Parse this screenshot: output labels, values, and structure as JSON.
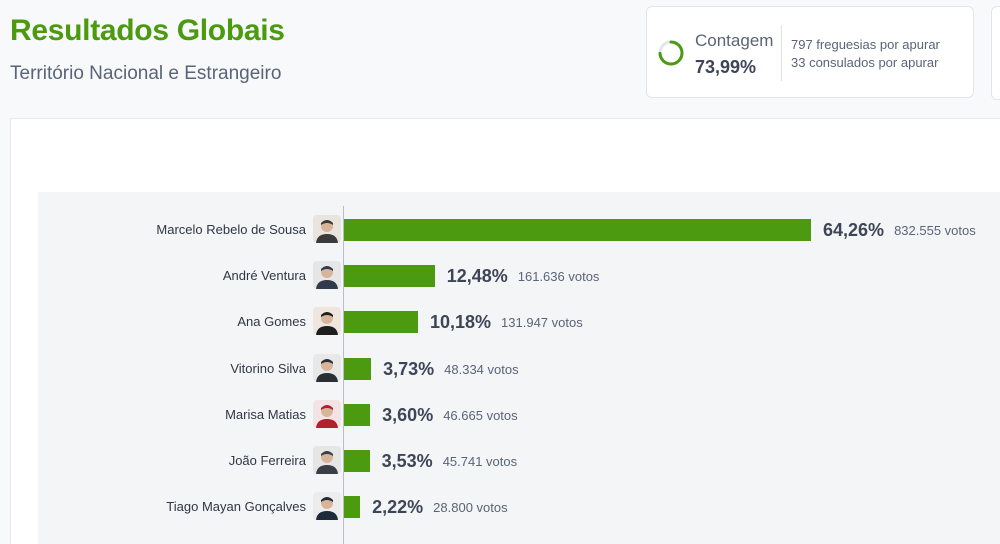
{
  "header": {
    "title": "Resultados Globais",
    "subtitle": "Território Nacional e Estrangeiro"
  },
  "count": {
    "label": "Contagem",
    "value": "73,99%",
    "progress": 0.7399,
    "freguesias": "797 freguesias por apurar",
    "consulados": "33 consulados por apurar"
  },
  "colors": {
    "accent": "#4c9a0f",
    "text": "#3d4556",
    "muted": "#5a6478"
  },
  "chart_data": {
    "type": "bar",
    "orientation": "horizontal",
    "categories": [
      "Marcelo Rebelo de Sousa",
      "André Ventura",
      "Ana Gomes",
      "Vitorino Silva",
      "Marisa Matias",
      "João Ferreira",
      "Tiago Mayan Gonçalves"
    ],
    "values": [
      64.26,
      12.48,
      10.18,
      3.73,
      3.6,
      3.53,
      2.22
    ],
    "pct_labels": [
      "64,26%",
      "12,48%",
      "10,18%",
      "3,73%",
      "3,60%",
      "3,53%",
      "2,22%"
    ],
    "vote_labels": [
      "832.555 votos",
      "161.636 votos",
      "131.947 votos",
      "48.334 votos",
      "46.665 votos",
      "45.741 votos",
      "28.800 votos"
    ],
    "avatars": [
      "portrait-photo-icon",
      "portrait-photo-icon",
      "portrait-photo-icon",
      "portrait-photo-icon",
      "portrait-photo-icon",
      "portrait-photo-icon",
      "portrait-photo-icon"
    ],
    "xlim": [
      0,
      64.26
    ],
    "grid": false,
    "legend": "none"
  }
}
